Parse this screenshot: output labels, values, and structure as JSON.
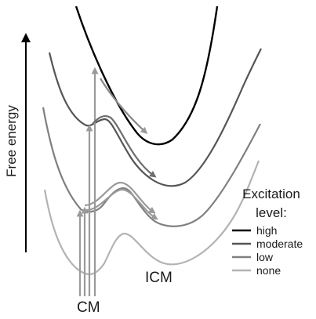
{
  "axis": {
    "label": "Free energy"
  },
  "points": {
    "cm_label": "CM",
    "icm_label": "ICM"
  },
  "legend": {
    "title_line1": "Excitation",
    "title_line2": "level:",
    "items": [
      {
        "label": "high",
        "color": "#000000"
      },
      {
        "label": "moderate",
        "color": "#555555"
      },
      {
        "label": "low",
        "color": "#808080"
      },
      {
        "label": "none",
        "color": "#b3b3b3"
      }
    ]
  }
}
